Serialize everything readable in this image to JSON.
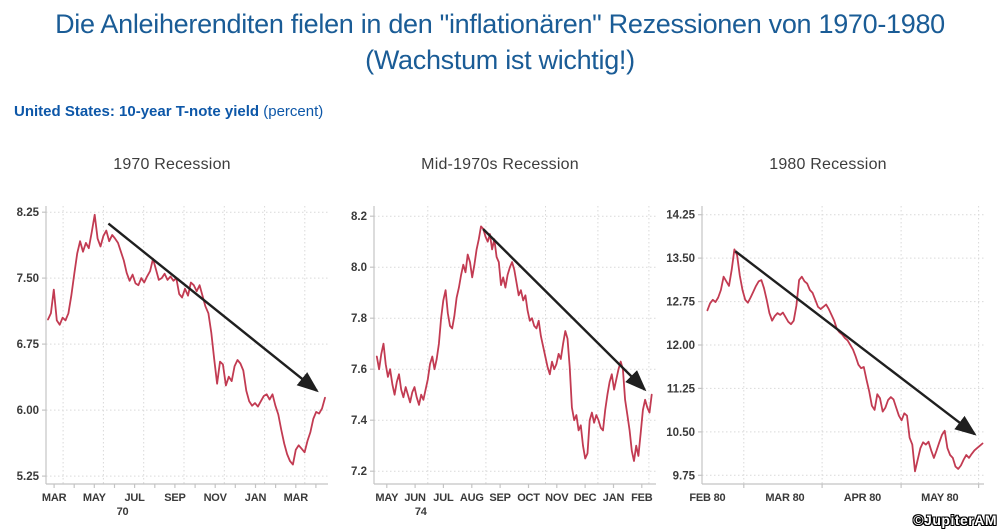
{
  "header": {
    "title": "Die Anleiherenditen fielen in den \"inflationären\" Rezessionen von 1970-1980 (Wachstum ist wichtig!)"
  },
  "subtitle": {
    "bold": "United States: 10-year T-note yield",
    "normal": " (percent)"
  },
  "watermark": {
    "text": "©JupiterAM"
  },
  "colors": {
    "title_blue": "#1a5c96",
    "subtitle_blue": "#0d57a8",
    "line_red": "#c23b52",
    "arrow_black": "#1f1f1f"
  },
  "chart_data": [
    {
      "type": "line",
      "title": "1970 Recession",
      "grid": true,
      "ylim": [
        5.16,
        8.32
      ],
      "yticks": [
        {
          "value": 8.25,
          "label": "8.25"
        },
        {
          "value": 7.5,
          "label": "7.50"
        },
        {
          "value": 6.75,
          "label": "6.75"
        },
        {
          "value": 6.0,
          "label": "6.00"
        },
        {
          "value": 5.25,
          "label": "5.25"
        }
      ],
      "xlim": [
        -0.4,
        13.6
      ],
      "xgrid": [
        0.45,
        2.45,
        4.45,
        6.45,
        8.45,
        10.45,
        12.45
      ],
      "xticks": [
        0,
        1,
        2,
        3,
        4,
        5,
        6,
        7,
        8,
        9,
        10,
        11,
        12,
        13
      ],
      "xlabels": [
        {
          "pos": 0,
          "text": "MAR"
        },
        {
          "pos": 2,
          "text": "MAY"
        },
        {
          "pos": 4,
          "text": "JUL"
        },
        {
          "pos": 6,
          "text": "SEP"
        },
        {
          "pos": 8,
          "text": "NOV"
        },
        {
          "pos": 10,
          "text": "JAN"
        },
        {
          "pos": 12,
          "text": "MAR"
        }
      ],
      "year_label": {
        "pos": 3.4,
        "text": "70"
      },
      "series": [
        {
          "name": "US 10-year T-note yield",
          "color": "#c23b52",
          "x_range": [
            -0.3,
            13.45
          ],
          "values": [
            7.03,
            7.1,
            7.37,
            7.02,
            6.97,
            7.05,
            7.02,
            7.1,
            7.3,
            7.55,
            7.78,
            7.92,
            7.8,
            7.9,
            7.84,
            8.02,
            8.22,
            7.95,
            7.86,
            7.98,
            8.04,
            7.92,
            7.99,
            7.95,
            7.9,
            7.8,
            7.7,
            7.56,
            7.47,
            7.54,
            7.44,
            7.42,
            7.5,
            7.45,
            7.52,
            7.58,
            7.72,
            7.6,
            7.48,
            7.5,
            7.55,
            7.48,
            7.52,
            7.47,
            7.5,
            7.32,
            7.28,
            7.38,
            7.3,
            7.45,
            7.42,
            7.35,
            7.42,
            7.3,
            7.18,
            7.1,
            6.88,
            6.58,
            6.3,
            6.55,
            6.52,
            6.28,
            6.38,
            6.33,
            6.5,
            6.57,
            6.53,
            6.45,
            6.22,
            6.1,
            6.05,
            6.08,
            6.04,
            6.1,
            6.16,
            6.18,
            6.12,
            6.18,
            6.05,
            5.95,
            5.78,
            5.62,
            5.5,
            5.42,
            5.38,
            5.55,
            5.6,
            5.56,
            5.52,
            5.65,
            5.75,
            5.9,
            5.98,
            5.96,
            6.02,
            6.14
          ]
        }
      ],
      "arrow": {
        "x1": 2.7,
        "y1": 8.12,
        "x2": 13.05,
        "y2": 6.22,
        "color": "#1f1f1f"
      }
    },
    {
      "type": "line",
      "title": "Mid-1970s Recession",
      "grid": true,
      "ylim": [
        7.15,
        8.24
      ],
      "yticks": [
        {
          "value": 8.2,
          "label": "8.2"
        },
        {
          "value": 8.0,
          "label": "8.0"
        },
        {
          "value": 7.8,
          "label": "7.8"
        },
        {
          "value": 7.6,
          "label": "7.6"
        },
        {
          "value": 7.4,
          "label": "7.4"
        },
        {
          "value": 7.2,
          "label": "7.2"
        }
      ],
      "xlim": [
        -0.45,
        9.5
      ],
      "xgrid": [
        1.45,
        3.5,
        5.6,
        7.45,
        9.25
      ],
      "xticks": [
        0,
        1,
        2,
        3,
        4,
        5,
        6,
        7,
        8,
        9
      ],
      "xlabels": [
        {
          "pos": 0,
          "text": "MAY"
        },
        {
          "pos": 1,
          "text": "JUN"
        },
        {
          "pos": 2,
          "text": "JUL"
        },
        {
          "pos": 3,
          "text": "AUG"
        },
        {
          "pos": 4,
          "text": "SEP"
        },
        {
          "pos": 5,
          "text": "OCT"
        },
        {
          "pos": 6,
          "text": "NOV"
        },
        {
          "pos": 7,
          "text": "DEC"
        },
        {
          "pos": 8,
          "text": "JAN"
        },
        {
          "pos": 9,
          "text": "FEB"
        }
      ],
      "year_label": {
        "pos": 1.2,
        "text": "74"
      },
      "series": [
        {
          "name": "US 10-year T-note yield",
          "color": "#c23b52",
          "x_range": [
            -0.35,
            9.35
          ],
          "values": [
            7.65,
            7.6,
            7.66,
            7.7,
            7.62,
            7.57,
            7.6,
            7.54,
            7.5,
            7.55,
            7.58,
            7.52,
            7.49,
            7.53,
            7.5,
            7.47,
            7.51,
            7.53,
            7.49,
            7.46,
            7.5,
            7.48,
            7.52,
            7.56,
            7.62,
            7.65,
            7.6,
            7.64,
            7.7,
            7.8,
            7.87,
            7.91,
            7.82,
            7.77,
            7.76,
            7.81,
            7.88,
            7.92,
            7.97,
            8.01,
            7.98,
            8.05,
            8.02,
            7.96,
            8.01,
            8.07,
            8.11,
            8.16,
            8.15,
            8.12,
            8.1,
            8.13,
            8.07,
            8.11,
            8.04,
            8.02,
            7.93,
            7.96,
            7.92,
            7.97,
            8.0,
            8.02,
            7.99,
            7.94,
            7.89,
            7.91,
            7.87,
            7.89,
            7.83,
            7.79,
            7.8,
            7.77,
            7.76,
            7.79,
            7.73,
            7.69,
            7.65,
            7.61,
            7.58,
            7.63,
            7.6,
            7.62,
            7.66,
            7.64,
            7.7,
            7.75,
            7.72,
            7.61,
            7.45,
            7.4,
            7.42,
            7.36,
            7.38,
            7.3,
            7.25,
            7.27,
            7.4,
            7.43,
            7.39,
            7.42,
            7.4,
            7.37,
            7.36,
            7.44,
            7.5,
            7.55,
            7.58,
            7.52,
            7.56,
            7.6,
            7.63,
            7.6,
            7.48,
            7.42,
            7.36,
            7.28,
            7.24,
            7.3,
            7.26,
            7.35,
            7.44,
            7.48,
            7.45,
            7.43,
            7.5
          ]
        }
      ],
      "arrow": {
        "x1": 3.4,
        "y1": 8.15,
        "x2": 9.1,
        "y2": 7.52,
        "color": "#1f1f1f"
      }
    },
    {
      "type": "line",
      "title": "1980 Recession",
      "grid": true,
      "ylim": [
        9.6,
        14.4
      ],
      "yticks": [
        {
          "value": 14.25,
          "label": "14.25"
        },
        {
          "value": 13.5,
          "label": "13.50"
        },
        {
          "value": 12.75,
          "label": "12.75"
        },
        {
          "value": 12.0,
          "label": "12.00"
        },
        {
          "value": 11.25,
          "label": "11.25"
        },
        {
          "value": 10.5,
          "label": "10.50"
        },
        {
          "value": 9.75,
          "label": "9.75"
        }
      ],
      "xlim": [
        -0.07,
        3.57
      ],
      "xgrid": [
        0.47,
        1.48,
        2.5,
        3.5
      ],
      "xticks": [
        0.47,
        1.48,
        2.5,
        3.5
      ],
      "xlabels": [
        {
          "pos": 0,
          "text": "FEB 80"
        },
        {
          "pos": 1,
          "text": "MAR 80"
        },
        {
          "pos": 2,
          "text": "APR 80"
        },
        {
          "pos": 3,
          "text": "MAY 80"
        }
      ],
      "year_label": null,
      "series": [
        {
          "name": "US 10-year T-note yield",
          "color": "#c23b52",
          "x_range": [
            0,
            3.55
          ],
          "values": [
            12.6,
            12.72,
            12.78,
            12.74,
            12.82,
            12.95,
            13.18,
            13.1,
            13.02,
            13.3,
            13.65,
            13.55,
            13.2,
            12.95,
            12.78,
            12.73,
            12.82,
            12.92,
            13.02,
            13.1,
            13.12,
            12.98,
            12.78,
            12.55,
            12.42,
            12.5,
            12.55,
            12.52,
            12.56,
            12.48,
            12.4,
            12.36,
            12.42,
            12.68,
            13.12,
            13.18,
            13.1,
            13.06,
            12.95,
            12.9,
            12.78,
            12.66,
            12.62,
            12.66,
            12.7,
            12.62,
            12.52,
            12.42,
            12.28,
            12.22,
            12.18,
            12.12,
            12.08,
            12.0,
            11.92,
            11.8,
            11.66,
            11.6,
            11.62,
            11.4,
            11.2,
            10.95,
            10.88,
            11.15,
            11.08,
            10.85,
            10.92,
            11.05,
            11.1,
            11.06,
            10.92,
            10.78,
            10.7,
            10.82,
            10.78,
            10.4,
            10.28,
            9.82,
            10.02,
            10.22,
            10.32,
            10.28,
            10.33,
            10.18,
            10.05,
            10.18,
            10.32,
            10.45,
            10.52,
            10.22,
            10.1,
            10.05,
            9.9,
            9.86,
            9.92,
            10.02,
            10.1,
            10.05,
            10.12,
            10.18,
            10.22,
            10.26,
            10.3
          ]
        }
      ],
      "arrow": {
        "x1": 0.36,
        "y1": 13.62,
        "x2": 3.45,
        "y2": 10.46,
        "color": "#1f1f1f"
      }
    }
  ]
}
